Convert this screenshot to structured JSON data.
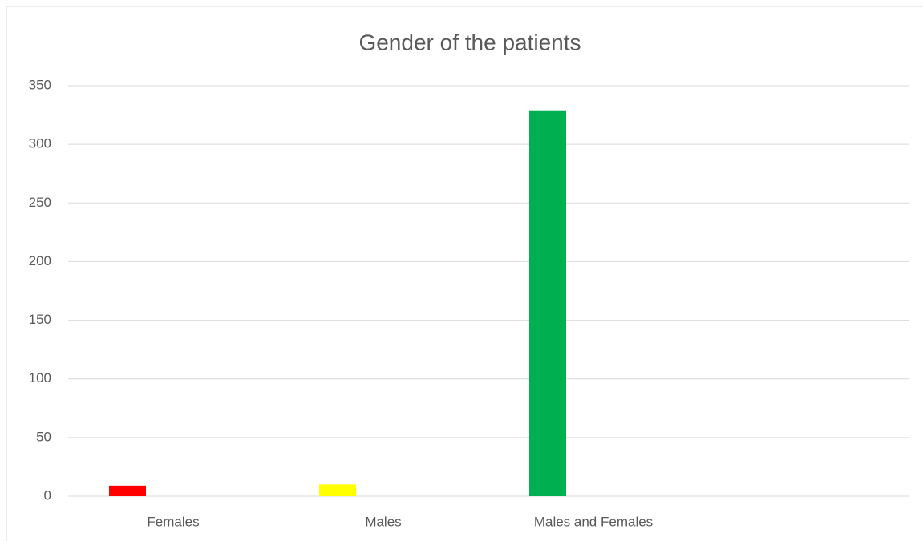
{
  "chart_data": {
    "type": "bar",
    "title": "Gender of the patients",
    "categories": [
      "Females",
      "Males",
      "Males and Females",
      null
    ],
    "values": [
      9,
      10,
      329,
      null
    ],
    "colors": [
      "#ff0000",
      "#ffff00",
      "#00b050",
      "#00b050"
    ],
    "ylim": [
      0,
      350
    ],
    "yticks": [
      0,
      50,
      100,
      150,
      200,
      250,
      300,
      350
    ],
    "grid": true
  }
}
